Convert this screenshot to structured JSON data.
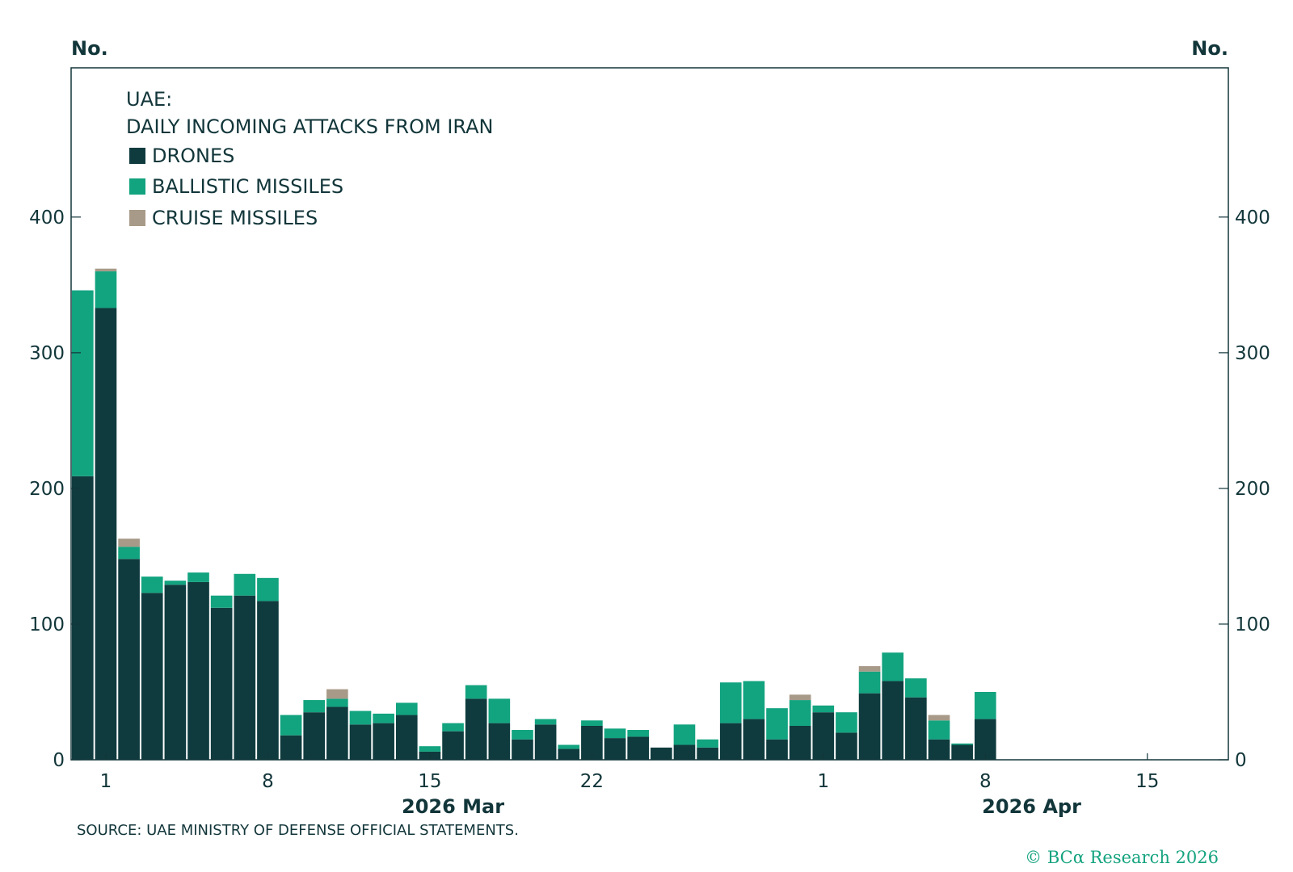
{
  "chart_data": {
    "type": "bar",
    "stacked": true,
    "left_unit": "No.",
    "right_unit": "No.",
    "title_line1": "UAE:",
    "title_line2": "DAILY INCOMING ATTACKS FROM IRAN",
    "ylim": [
      0,
      510
    ],
    "yticks": [
      0,
      100,
      200,
      300,
      400
    ],
    "xlim": [
      "2026-02-28",
      "2026-04-19"
    ],
    "xticks": [
      {
        "date": "2026-03-01",
        "label": "1"
      },
      {
        "date": "2026-03-08",
        "label": "8"
      },
      {
        "date": "2026-03-15",
        "label": "15"
      },
      {
        "date": "2026-03-22",
        "label": "22"
      },
      {
        "date": "2026-04-01",
        "label": "1"
      },
      {
        "date": "2026-04-08",
        "label": "8"
      },
      {
        "date": "2026-04-15",
        "label": "15"
      }
    ],
    "month_labels": [
      {
        "label": "2026 Mar",
        "date": "2026-03-16"
      },
      {
        "label": "2026 Apr",
        "date": "2026-04-10"
      }
    ],
    "grid": false,
    "legend_position": "top-left",
    "series": [
      {
        "name": "DRONES",
        "color": "#0f3b3e"
      },
      {
        "name": "BALLISTIC MISSILES",
        "color": "#12a37f"
      },
      {
        "name": "CRUISE MISSILES",
        "color": "#a89a88"
      }
    ],
    "dates": [
      "2026-02-28",
      "2026-03-01",
      "2026-03-02",
      "2026-03-03",
      "2026-03-04",
      "2026-03-05",
      "2026-03-06",
      "2026-03-07",
      "2026-03-08",
      "2026-03-09",
      "2026-03-10",
      "2026-03-11",
      "2026-03-12",
      "2026-03-13",
      "2026-03-14",
      "2026-03-15",
      "2026-03-16",
      "2026-03-17",
      "2026-03-18",
      "2026-03-19",
      "2026-03-20",
      "2026-03-21",
      "2026-03-22",
      "2026-03-23",
      "2026-03-24",
      "2026-03-25",
      "2026-03-26",
      "2026-03-27",
      "2026-03-28",
      "2026-03-29",
      "2026-03-30",
      "2026-03-31",
      "2026-04-01",
      "2026-04-02",
      "2026-04-03",
      "2026-04-04",
      "2026-04-05",
      "2026-04-06",
      "2026-04-07",
      "2026-04-08"
    ],
    "drones": [
      209,
      333,
      148,
      123,
      129,
      131,
      112,
      121,
      117,
      18,
      35,
      39,
      26,
      27,
      33,
      6,
      21,
      45,
      27,
      15,
      26,
      8,
      25,
      16,
      17,
      9,
      11,
      9,
      27,
      30,
      15,
      25,
      35,
      20,
      49,
      58,
      46,
      15,
      11,
      30
    ],
    "ballistic": [
      137,
      27,
      9,
      12,
      3,
      7,
      9,
      16,
      17,
      15,
      9,
      6,
      10,
      7,
      9,
      4,
      6,
      10,
      18,
      7,
      4,
      3,
      4,
      7,
      5,
      0,
      15,
      6,
      30,
      28,
      23,
      19,
      5,
      15,
      16,
      21,
      14,
      14,
      1,
      20
    ],
    "cruise": [
      0,
      2,
      6,
      0,
      0,
      0,
      0,
      0,
      0,
      0,
      0,
      7,
      0,
      0,
      0,
      0,
      0,
      0,
      0,
      0,
      0,
      0,
      0,
      0,
      0,
      0,
      0,
      0,
      0,
      0,
      0,
      4,
      0,
      0,
      4,
      0,
      0,
      4,
      0,
      0
    ]
  },
  "source": "SOURCE: UAE MINISTRY OF DEFENSE OFFICIAL STATEMENTS.",
  "copyright": "© BCα Research 2026"
}
